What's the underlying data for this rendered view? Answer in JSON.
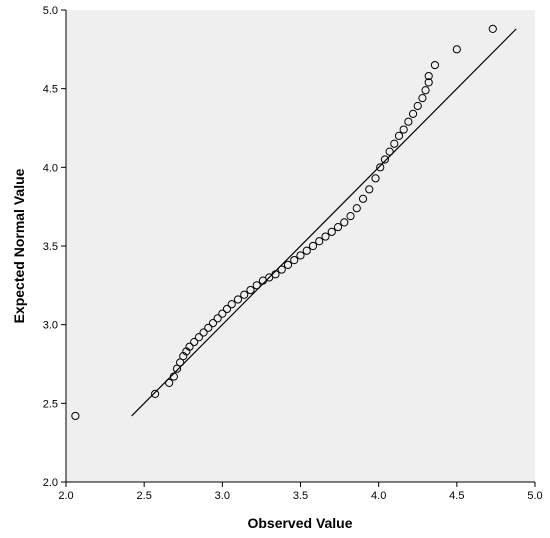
{
  "chart_data": {
    "type": "scatter",
    "title": "",
    "xlabel": "Observed Value",
    "ylabel": "Expected Normal Value",
    "xlim": [
      2.0,
      5.0
    ],
    "ylim": [
      2.0,
      5.0
    ],
    "xticks": [
      "2.0",
      "2.5",
      "3.0",
      "3.5",
      "4.0",
      "4.5",
      "5.0"
    ],
    "yticks": [
      "2.0",
      "2.5",
      "3.0",
      "3.5",
      "4.0",
      "4.5",
      "5.0"
    ],
    "grid": false,
    "background_color": "#efefef",
    "marker": "open-circle",
    "reference_line": {
      "x": [
        2.42,
        4.88
      ],
      "y": [
        2.42,
        4.88
      ]
    },
    "points": [
      [
        2.06,
        2.42
      ],
      [
        2.57,
        2.56
      ],
      [
        2.66,
        2.63
      ],
      [
        2.69,
        2.67
      ],
      [
        2.71,
        2.72
      ],
      [
        2.73,
        2.76
      ],
      [
        2.75,
        2.8
      ],
      [
        2.77,
        2.83
      ],
      [
        2.79,
        2.86
      ],
      [
        2.82,
        2.89
      ],
      [
        2.85,
        2.92
      ],
      [
        2.88,
        2.95
      ],
      [
        2.91,
        2.98
      ],
      [
        2.94,
        3.01
      ],
      [
        2.97,
        3.04
      ],
      [
        3.0,
        3.07
      ],
      [
        3.03,
        3.1
      ],
      [
        3.06,
        3.13
      ],
      [
        3.1,
        3.16
      ],
      [
        3.14,
        3.19
      ],
      [
        3.18,
        3.22
      ],
      [
        3.22,
        3.25
      ],
      [
        3.26,
        3.28
      ],
      [
        3.3,
        3.3
      ],
      [
        3.34,
        3.32
      ],
      [
        3.38,
        3.35
      ],
      [
        3.42,
        3.38
      ],
      [
        3.46,
        3.41
      ],
      [
        3.5,
        3.44
      ],
      [
        3.54,
        3.47
      ],
      [
        3.58,
        3.5
      ],
      [
        3.62,
        3.53
      ],
      [
        3.66,
        3.56
      ],
      [
        3.7,
        3.59
      ],
      [
        3.74,
        3.62
      ],
      [
        3.78,
        3.65
      ],
      [
        3.82,
        3.69
      ],
      [
        3.86,
        3.74
      ],
      [
        3.9,
        3.8
      ],
      [
        3.94,
        3.86
      ],
      [
        3.98,
        3.93
      ],
      [
        4.01,
        4.0
      ],
      [
        4.04,
        4.05
      ],
      [
        4.07,
        4.1
      ],
      [
        4.1,
        4.15
      ],
      [
        4.13,
        4.2
      ],
      [
        4.16,
        4.24
      ],
      [
        4.19,
        4.29
      ],
      [
        4.22,
        4.34
      ],
      [
        4.25,
        4.39
      ],
      [
        4.28,
        4.44
      ],
      [
        4.3,
        4.49
      ],
      [
        4.32,
        4.54
      ],
      [
        4.32,
        4.58
      ],
      [
        4.36,
        4.65
      ],
      [
        4.5,
        4.75
      ],
      [
        4.73,
        4.88
      ]
    ]
  }
}
